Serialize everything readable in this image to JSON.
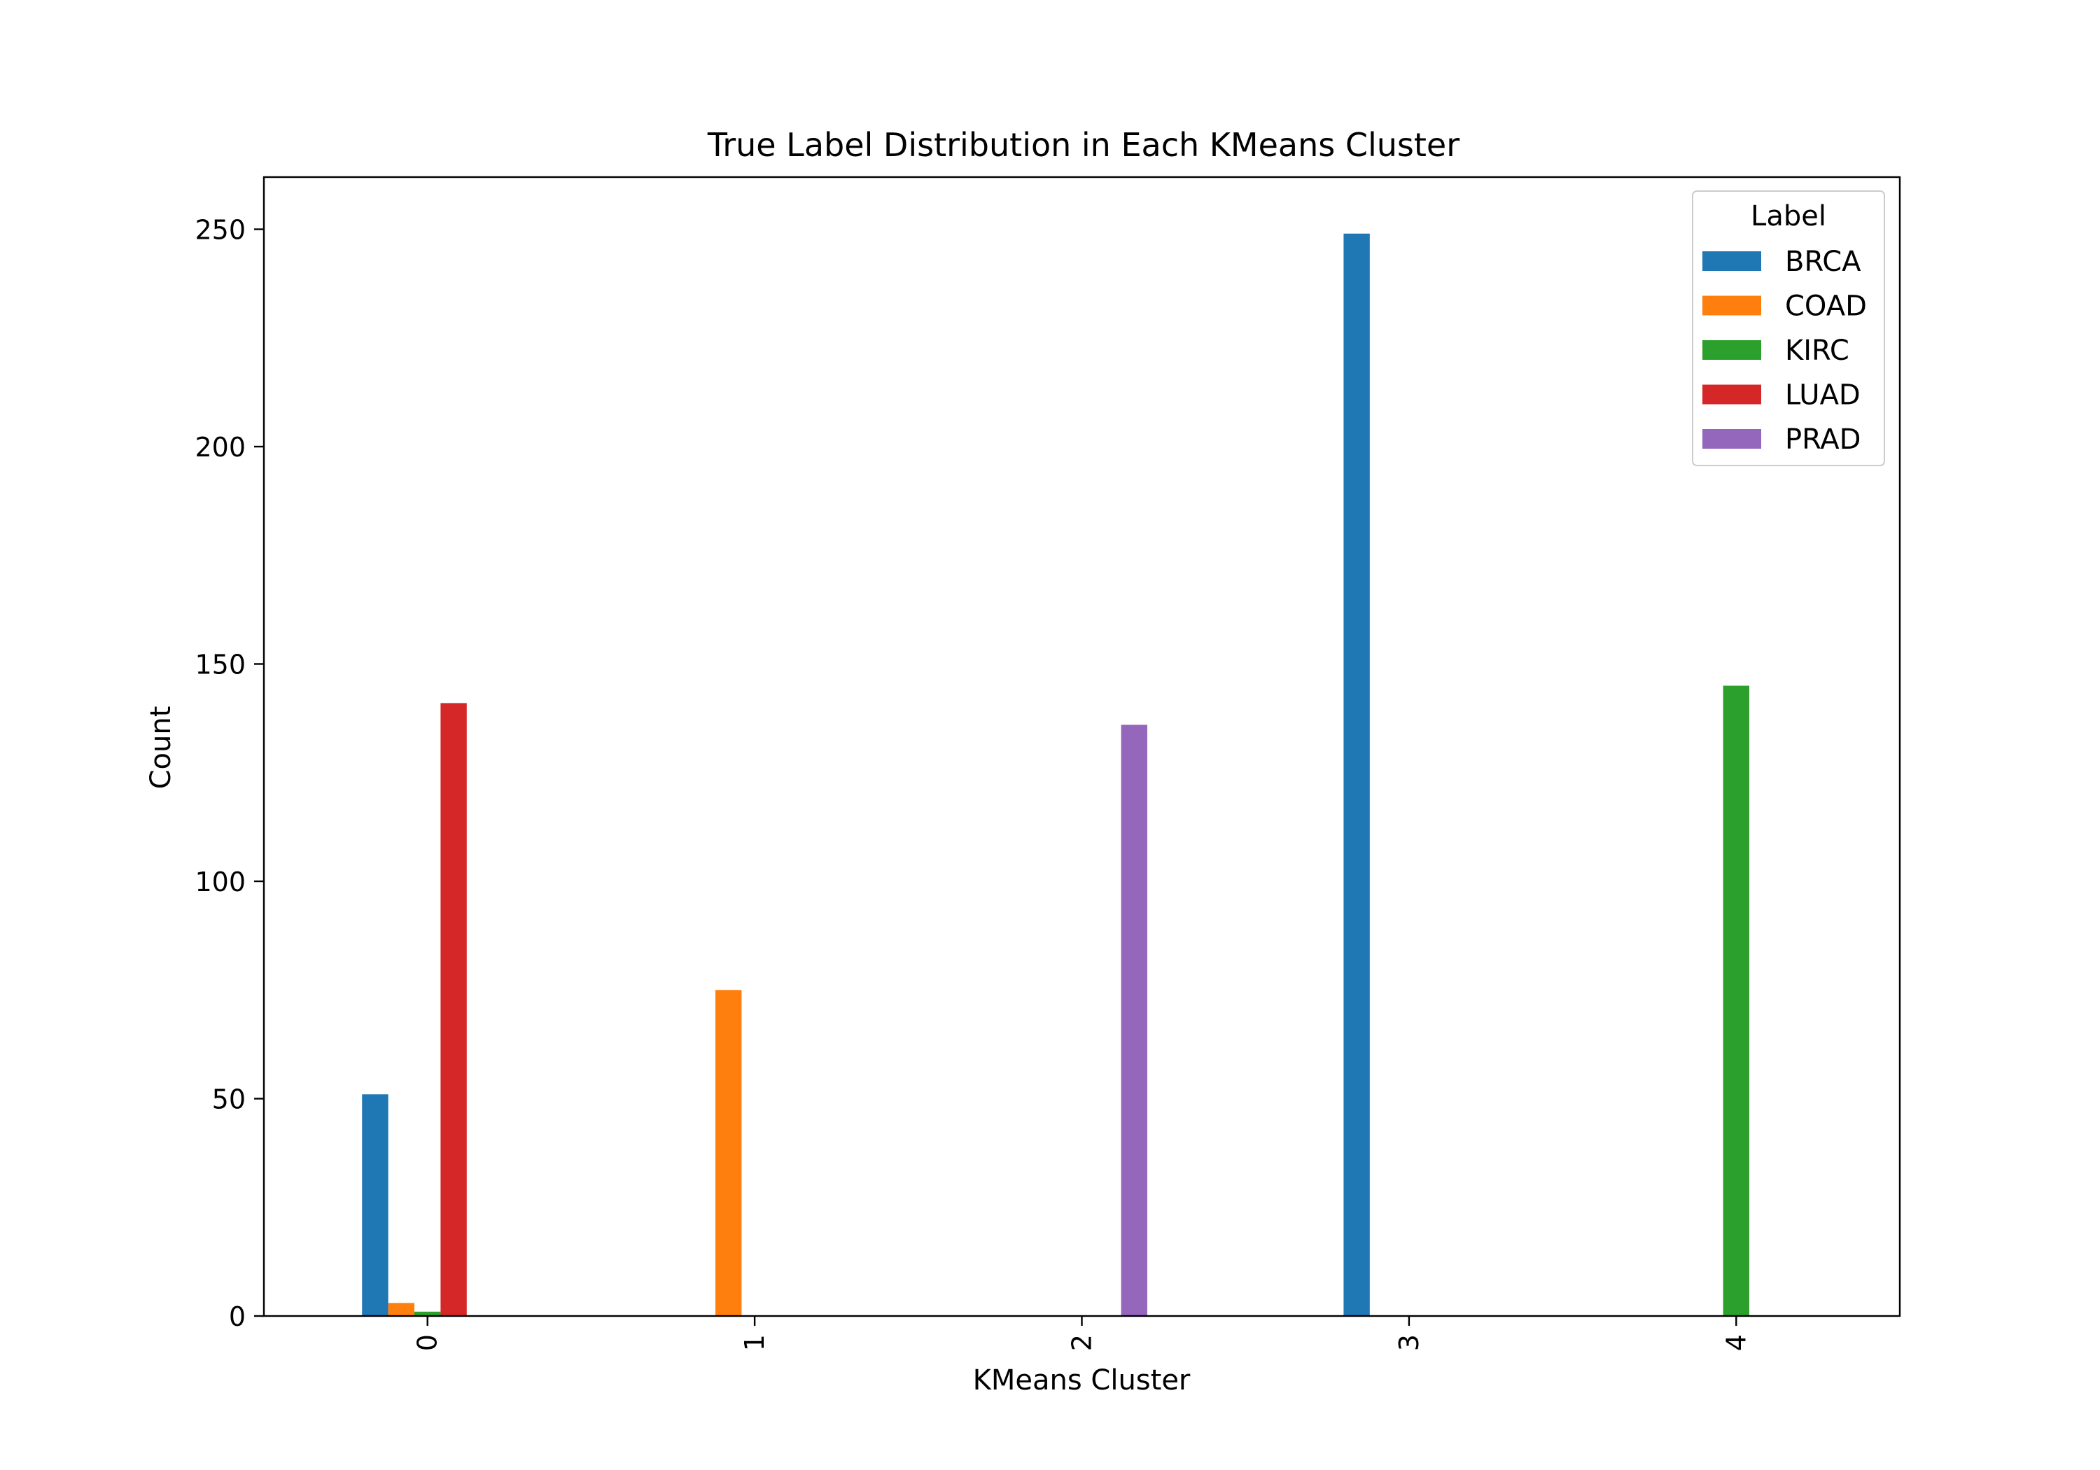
{
  "chart_data": {
    "type": "bar",
    "title": "True Label Distribution in Each KMeans Cluster",
    "xlabel": "KMeans Cluster",
    "ylabel": "Count",
    "categories": [
      "0",
      "1",
      "2",
      "3",
      "4"
    ],
    "ylim": [
      0,
      262
    ],
    "yticks": [
      0,
      50,
      100,
      150,
      200,
      250
    ],
    "grid": false,
    "legend": {
      "title": "Label",
      "placement": "top-right"
    },
    "series": [
      {
        "name": "BRCA",
        "color": "#1f77b4",
        "values": [
          51,
          0,
          0,
          249,
          0
        ]
      },
      {
        "name": "COAD",
        "color": "#ff7f0e",
        "values": [
          3,
          75,
          0,
          0,
          0
        ]
      },
      {
        "name": "KIRC",
        "color": "#2ca02c",
        "values": [
          1,
          0,
          0,
          0,
          145
        ]
      },
      {
        "name": "LUAD",
        "color": "#d62728",
        "values": [
          141,
          0,
          0,
          0,
          0
        ]
      },
      {
        "name": "PRAD",
        "color": "#9467bd",
        "values": [
          0,
          0,
          136,
          0,
          0
        ]
      }
    ]
  }
}
